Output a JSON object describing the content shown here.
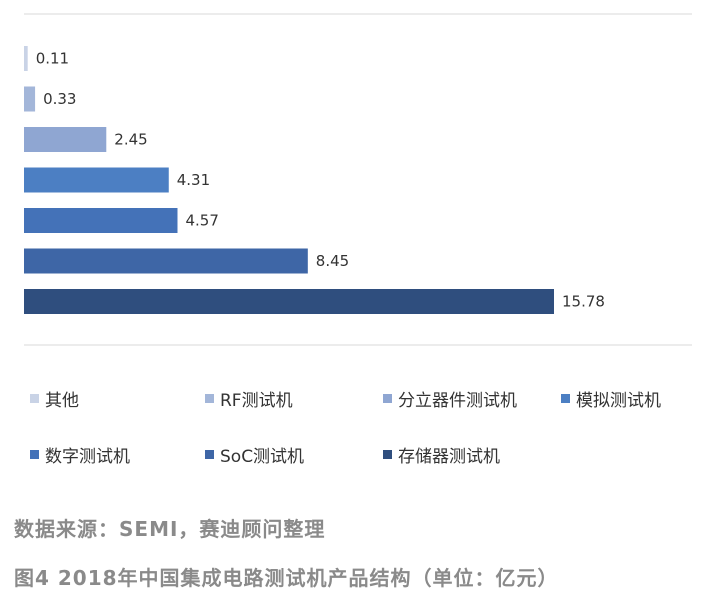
{
  "chart_data": {
    "type": "bar",
    "orientation": "horizontal",
    "categories": [
      "其他",
      "RF测试机",
      "分立器件测试机",
      "模拟测试机",
      "数字测试机",
      "SoC测试机",
      "存储器测试机"
    ],
    "values": [
      0.11,
      0.33,
      2.45,
      4.31,
      4.57,
      8.45,
      15.78
    ],
    "value_labels": [
      "0.11",
      "0.33",
      "2.45",
      "4.31",
      "4.57",
      "8.45",
      "15.78"
    ],
    "colors": [
      "#c9d3e6",
      "#a3b6d9",
      "#8fa6d2",
      "#4c7fc3",
      "#4472b8",
      "#3e66a6",
      "#2f4e7e"
    ],
    "title": "",
    "xlabel": "",
    "ylabel": "",
    "xlim": [
      0,
      16
    ],
    "grid": false,
    "legend": {
      "placement": "bottom",
      "rows": [
        [
          0,
          1,
          2,
          3
        ],
        [
          4,
          5,
          6
        ]
      ]
    }
  },
  "source": "数据来源：SEMI，赛迪顾问整理",
  "caption": "图4 2018年中国集成电路测试机产品结构（单位：亿元）"
}
